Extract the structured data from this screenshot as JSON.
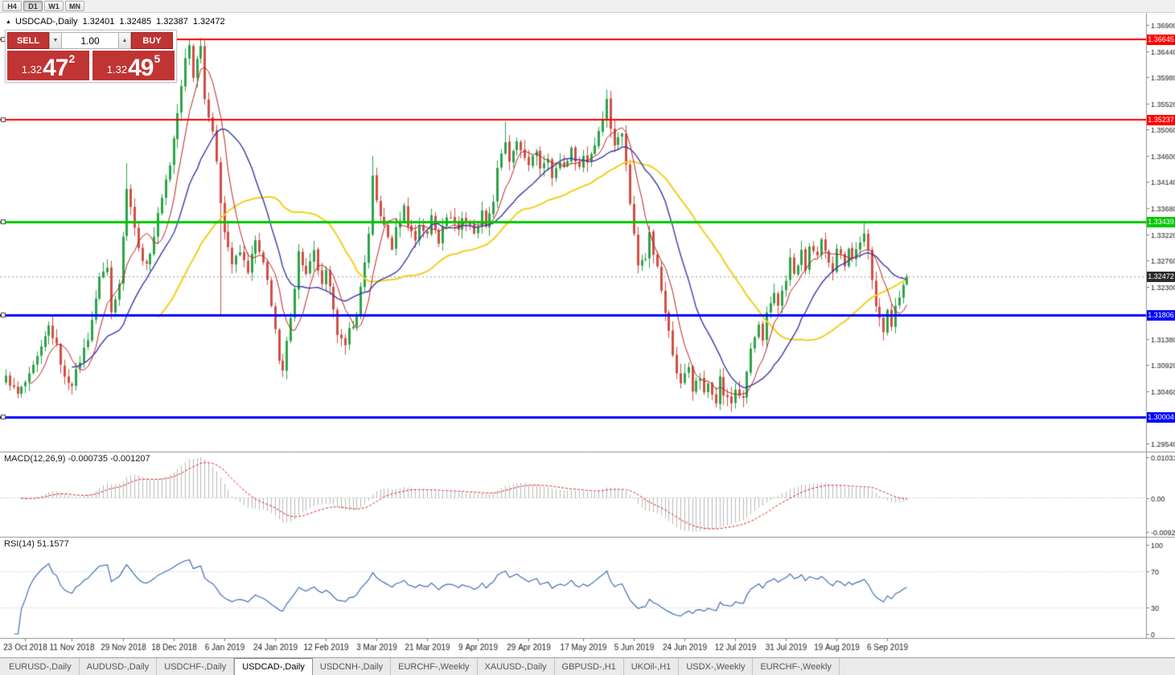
{
  "toolbar": {
    "timeframes": [
      {
        "label": "H4",
        "active": false
      },
      {
        "label": "D1",
        "active": true
      },
      {
        "label": "W1",
        "active": false
      },
      {
        "label": "MN",
        "active": false
      }
    ]
  },
  "chart": {
    "title": "USDCAD-,Daily",
    "open": "1.32401",
    "high": "1.32485",
    "low": "1.32387",
    "close": "1.32472"
  },
  "trade_widget": {
    "sell_label": "SELL",
    "buy_label": "BUY",
    "volume": "1.00",
    "sell_price": {
      "prefix": "1.32",
      "digits": "47",
      "pip": "2"
    },
    "buy_price": {
      "prefix": "1.32",
      "digits": "49",
      "pip": "5"
    }
  },
  "macd": {
    "label": "MACD(12,26,9)",
    "value_main": "-0.000735",
    "value_signal": "-0.001207",
    "axis": [
      "0.010311",
      "0.00",
      "-0.009203"
    ]
  },
  "rsi": {
    "label": "RSI(14)",
    "value": "51.1577",
    "axis": [
      "100",
      "70",
      "30",
      "0"
    ]
  },
  "tabs": {
    "items": [
      {
        "label": "EURUSD-,Daily",
        "active": false
      },
      {
        "label": "AUDUSD-,Daily",
        "active": false
      },
      {
        "label": "USDCHF-,Daily",
        "active": false
      },
      {
        "label": "USDCAD-,Daily",
        "active": true
      },
      {
        "label": "USDCNH-,Daily",
        "active": false
      },
      {
        "label": "EURCHF-,Weekly",
        "active": false
      },
      {
        "label": "XAUUSD-,Daily",
        "active": false
      },
      {
        "label": "GBPUSD-,H1",
        "active": false
      },
      {
        "label": "UKOil-,H1",
        "active": false
      },
      {
        "label": "USDX-,Weekly",
        "active": false
      },
      {
        "label": "EURCHF-,Weekly",
        "active": false
      }
    ]
  },
  "colors": {
    "bull": "#2ba44a",
    "bear": "#d04f45",
    "line_red": "#ff0000",
    "line_green": "#00c800",
    "line_blue": "#0000ff",
    "current_price_badge": "#2b2b2b",
    "macd_hist": "#b9b9b9",
    "macd_signal": "#dd2222",
    "rsi_line": "#3f6fb5",
    "trade_red": "#c13434"
  },
  "chart_data": {
    "type": "candlestick",
    "symbol": "USDCAD",
    "timeframe": "Daily",
    "candle_count": 232,
    "y_axis": {
      "min": 1.2954,
      "max": 1.369,
      "tick_labels": [
        "1.36900",
        "1.36440",
        "1.35980",
        "1.35520",
        "1.35060",
        "1.34600",
        "1.34140",
        "1.33680",
        "1.33220",
        "1.32760",
        "1.32300",
        "1.31840",
        "1.31380",
        "1.30920",
        "1.30460",
        "1.30000",
        "1.29540"
      ]
    },
    "x_axis": {
      "labels": [
        {
          "text": "23 Oct 2018",
          "index": 5
        },
        {
          "text": "11 Nov 2018",
          "index": 17
        },
        {
          "text": "29 Nov 2018",
          "index": 30
        },
        {
          "text": "18 Dec 2018",
          "index": 43
        },
        {
          "text": "6 Jan 2019",
          "index": 56
        },
        {
          "text": "24 Jan 2019",
          "index": 69
        },
        {
          "text": "12 Feb 2019",
          "index": 82
        },
        {
          "text": "3 Mar 2019",
          "index": 95
        },
        {
          "text": "21 Mar 2019",
          "index": 108
        },
        {
          "text": "9 Apr 2019",
          "index": 121
        },
        {
          "text": "29 Apr 2019",
          "index": 134
        },
        {
          "text": "17 May 2019",
          "index": 148
        },
        {
          "text": "5 Jun 2019",
          "index": 161
        },
        {
          "text": "24 Jun 2019",
          "index": 174
        },
        {
          "text": "12 Jul 2019",
          "index": 187
        },
        {
          "text": "31 Jul 2019",
          "index": 200
        },
        {
          "text": "19 Aug 2019",
          "index": 213
        },
        {
          "text": "6 Sep 2019",
          "index": 226
        }
      ]
    },
    "horizontal_lines": [
      {
        "price": 1.36645,
        "label": "1.36645",
        "color": "#ff0000",
        "width": 2
      },
      {
        "price": 1.35237,
        "label": "1.35237",
        "color": "#ff0000",
        "width": 2
      },
      {
        "price": 1.33439,
        "label": "1.33439",
        "color": "#00c800",
        "width": 3
      },
      {
        "price": 1.31806,
        "label": "1.31806",
        "color": "#0000ff",
        "width": 3
      },
      {
        "price": 1.30004,
        "label": "1.30004",
        "color": "#0000ff",
        "width": 3
      }
    ],
    "current_price": {
      "value": 1.32472,
      "label": "1.32472"
    },
    "moving_averages": [
      {
        "period": 40,
        "color": "#f2cf1d",
        "width": 2
      },
      {
        "period": 18,
        "color": "#3939a8",
        "width": 1.4
      },
      {
        "period": 7,
        "color": "#bb2222",
        "width": 1
      }
    ],
    "close_anchors": [
      [
        0,
        1.307
      ],
      [
        3,
        1.304
      ],
      [
        6,
        1.3072
      ],
      [
        9,
        1.312
      ],
      [
        11,
        1.316
      ],
      [
        13,
        1.3125
      ],
      [
        15,
        1.3068
      ],
      [
        17,
        1.306
      ],
      [
        19,
        1.31
      ],
      [
        21,
        1.314
      ],
      [
        23,
        1.3205
      ],
      [
        24,
        1.325
      ],
      [
        26,
        1.3262
      ],
      [
        27,
        1.3185
      ],
      [
        29,
        1.324
      ],
      [
        31,
        1.34
      ],
      [
        32,
        1.3375
      ],
      [
        34,
        1.3295
      ],
      [
        36,
        1.3265
      ],
      [
        38,
        1.332
      ],
      [
        40,
        1.339
      ],
      [
        42,
        1.3445
      ],
      [
        43,
        1.349
      ],
      [
        45,
        1.358
      ],
      [
        46,
        1.363
      ],
      [
        47,
        1.3655
      ],
      [
        48,
        1.36
      ],
      [
        50,
        1.3658
      ],
      [
        51,
        1.356
      ],
      [
        53,
        1.3505
      ],
      [
        54,
        1.3445
      ],
      [
        55,
        1.338
      ],
      [
        56,
        1.333
      ],
      [
        58,
        1.327
      ],
      [
        60,
        1.329
      ],
      [
        62,
        1.3258
      ],
      [
        64,
        1.331
      ],
      [
        66,
        1.3268
      ],
      [
        67,
        1.324
      ],
      [
        68,
        1.32
      ],
      [
        69,
        1.3155
      ],
      [
        70,
        1.3095
      ],
      [
        71,
        1.308
      ],
      [
        72,
        1.313
      ],
      [
        74,
        1.323
      ],
      [
        75,
        1.329
      ],
      [
        77,
        1.325
      ],
      [
        79,
        1.329
      ],
      [
        81,
        1.323
      ],
      [
        82,
        1.3255
      ],
      [
        84,
        1.3195
      ],
      [
        85,
        1.315
      ],
      [
        87,
        1.3122
      ],
      [
        88,
        1.3155
      ],
      [
        90,
        1.3175
      ],
      [
        91,
        1.323
      ],
      [
        93,
        1.332
      ],
      [
        94,
        1.342
      ],
      [
        95,
        1.338
      ],
      [
        97,
        1.3335
      ],
      [
        99,
        1.3298
      ],
      [
        100,
        1.333
      ],
      [
        102,
        1.337
      ],
      [
        103,
        1.334
      ],
      [
        105,
        1.3312
      ],
      [
        106,
        1.334
      ],
      [
        108,
        1.332
      ],
      [
        109,
        1.3355
      ],
      [
        111,
        1.331
      ],
      [
        112,
        1.334
      ],
      [
        114,
        1.3355
      ],
      [
        116,
        1.333
      ],
      [
        117,
        1.335
      ],
      [
        119,
        1.334
      ],
      [
        120,
        1.332
      ],
      [
        122,
        1.336
      ],
      [
        123,
        1.334
      ],
      [
        125,
        1.338
      ],
      [
        126,
        1.344
      ],
      [
        128,
        1.348
      ],
      [
        129,
        1.345
      ],
      [
        131,
        1.348
      ],
      [
        133,
        1.346
      ],
      [
        134,
        1.344
      ],
      [
        136,
        1.347
      ],
      [
        137,
        1.344
      ],
      [
        139,
        1.346
      ],
      [
        140,
        1.342
      ],
      [
        142,
        1.345
      ],
      [
        143,
        1.344
      ],
      [
        145,
        1.347
      ],
      [
        147,
        1.344
      ],
      [
        148,
        1.346
      ],
      [
        149,
        1.345
      ],
      [
        151,
        1.348
      ],
      [
        153,
        1.353
      ],
      [
        154,
        1.3558
      ],
      [
        155,
        1.351
      ],
      [
        156,
        1.348
      ],
      [
        158,
        1.35
      ],
      [
        159,
        1.345
      ],
      [
        160,
        1.338
      ],
      [
        161,
        1.332
      ],
      [
        162,
        1.327
      ],
      [
        164,
        1.328
      ],
      [
        165,
        1.333
      ],
      [
        166,
        1.329
      ],
      [
        167,
        1.327
      ],
      [
        168,
        1.322
      ],
      [
        170,
        1.315
      ],
      [
        171,
        1.311
      ],
      [
        172,
        1.308
      ],
      [
        173,
        1.306
      ],
      [
        175,
        1.309
      ],
      [
        176,
        1.305
      ],
      [
        178,
        1.307
      ],
      [
        179,
        1.304
      ],
      [
        180,
        1.306
      ],
      [
        182,
        1.303
      ],
      [
        183,
        1.307
      ],
      [
        184,
        1.304
      ],
      [
        186,
        1.3025
      ],
      [
        187,
        1.305
      ],
      [
        189,
        1.303
      ],
      [
        190,
        1.308
      ],
      [
        191,
        1.312
      ],
      [
        193,
        1.316
      ],
      [
        194,
        1.313
      ],
      [
        195,
        1.318
      ],
      [
        197,
        1.322
      ],
      [
        198,
        1.32
      ],
      [
        200,
        1.324
      ],
      [
        201,
        1.328
      ],
      [
        202,
        1.325
      ],
      [
        204,
        1.329
      ],
      [
        205,
        1.326
      ],
      [
        206,
        1.33
      ],
      [
        208,
        1.328
      ],
      [
        209,
        1.331
      ],
      [
        210,
        1.329
      ],
      [
        212,
        1.326
      ],
      [
        213,
        1.33
      ],
      [
        215,
        1.327
      ],
      [
        216,
        1.33
      ],
      [
        217,
        1.328
      ],
      [
        219,
        1.331
      ],
      [
        220,
        1.332
      ],
      [
        221,
        1.329
      ],
      [
        222,
        1.324
      ],
      [
        223,
        1.32
      ],
      [
        224,
        1.318
      ],
      [
        225,
        1.315
      ],
      [
        226,
        1.3185
      ],
      [
        227,
        1.316
      ],
      [
        228,
        1.32
      ],
      [
        230,
        1.323
      ],
      [
        231,
        1.32472
      ]
    ],
    "wick_overrides": [
      [
        31,
        "h",
        1.3447
      ],
      [
        47,
        "h",
        1.36645
      ],
      [
        50,
        "h",
        1.366
      ],
      [
        55,
        "l",
        1.318
      ],
      [
        94,
        "h",
        1.346
      ],
      [
        128,
        "h",
        1.352
      ],
      [
        154,
        "h",
        1.3565
      ],
      [
        186,
        "l",
        1.3016
      ],
      [
        189,
        "l",
        1.3018
      ],
      [
        220,
        "h",
        1.3344
      ],
      [
        225,
        "l",
        1.3135
      ]
    ],
    "indicators": {
      "macd": {
        "params": "12,26,9",
        "main": -0.000735,
        "signal": -0.001207,
        "axis_max": 0.010311,
        "axis_min": -0.009203
      },
      "rsi": {
        "period": 14,
        "value": 51.1577,
        "levels": [
          70,
          30
        ],
        "axis": [
          100,
          70,
          30,
          0
        ]
      }
    }
  }
}
